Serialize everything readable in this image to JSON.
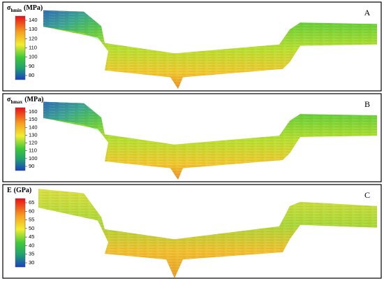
{
  "panels": [
    {
      "title": {
        "symbol": "σ",
        "subscript": "hmin",
        "unit": "(MPa)"
      },
      "letter": "A",
      "colorbar_ticks": [
        140,
        130,
        120,
        110,
        100,
        90,
        80
      ]
    },
    {
      "title": {
        "symbol": "σ",
        "subscript": "hmax",
        "unit": "(MPa)"
      },
      "letter": "B",
      "colorbar_ticks": [
        160,
        150,
        140,
        130,
        120,
        110,
        100,
        90
      ]
    },
    {
      "title": {
        "symbol": "E",
        "unit": "(GPa)"
      },
      "letter": "C",
      "colorbar_ticks": [
        65,
        60,
        55,
        50,
        45,
        40,
        35,
        30
      ]
    }
  ]
}
